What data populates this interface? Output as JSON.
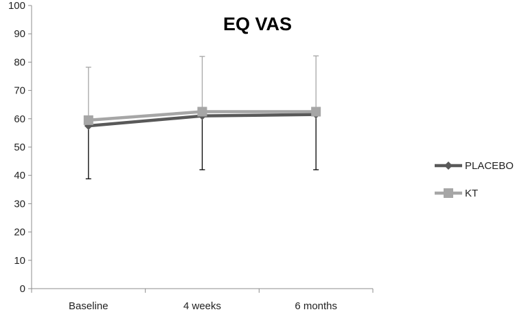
{
  "chart_data": {
    "type": "line",
    "title": "EQ VAS",
    "xlabel": "",
    "ylabel": "",
    "categories": [
      "Baseline",
      "4 weeks",
      "6 months"
    ],
    "ylim": [
      0,
      100
    ],
    "yticks": [
      0,
      10,
      20,
      30,
      40,
      50,
      60,
      70,
      80,
      90,
      100
    ],
    "grid": false,
    "legend_position": "right",
    "series": [
      {
        "name": "PLACEBO",
        "marker": "diamond",
        "color": "#595959",
        "values": [
          57.5,
          61,
          61.5
        ],
        "error_lower": [
          38.8,
          42,
          42
        ],
        "error_upper": [
          76,
          80,
          80.5
        ]
      },
      {
        "name": "KT",
        "marker": "square",
        "color": "#a6a6a6",
        "values": [
          59.5,
          62.5,
          62.5
        ],
        "error_lower": [
          41,
          43,
          43
        ],
        "error_upper": [
          78.2,
          82,
          82.2
        ]
      }
    ]
  }
}
